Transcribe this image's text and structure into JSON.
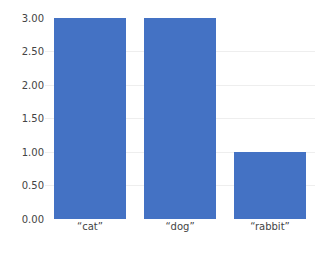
{
  "chart_data": {
    "type": "bar",
    "categories": [
      "“cat”",
      "“dog”",
      "“rabbit”"
    ],
    "values": [
      3,
      3,
      1
    ],
    "color": "#4472c4",
    "ylim": [
      0,
      3.0
    ],
    "yticks": [
      {
        "value": 0.0,
        "label": "0.00"
      },
      {
        "value": 0.5,
        "label": "0.50"
      },
      {
        "value": 1.0,
        "label": "1.00"
      },
      {
        "value": 1.5,
        "label": "1.50"
      },
      {
        "value": 2.0,
        "label": "2.00"
      },
      {
        "value": 2.5,
        "label": "2.50"
      },
      {
        "value": 3.0,
        "label": "3.00"
      }
    ],
    "grid": true
  }
}
